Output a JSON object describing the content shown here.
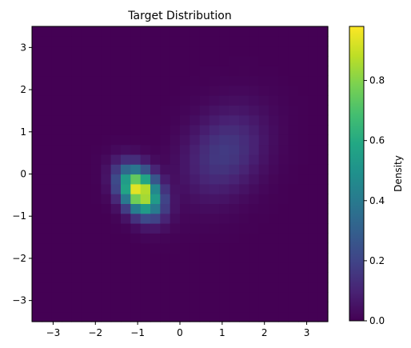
{
  "chart_data": {
    "type": "heatmap",
    "title": "Target Distribution",
    "xlabel": "",
    "ylabel": "",
    "xlim": [
      -3.5,
      3.5
    ],
    "ylim": [
      -3.5,
      3.5
    ],
    "grid_bins": 30,
    "xticks": [
      -3,
      -2,
      -1,
      0,
      1,
      2,
      3
    ],
    "yticks": [
      -3,
      -2,
      -1,
      0,
      1,
      2,
      3
    ],
    "colormap": "viridis",
    "colorbar": {
      "label": "Density",
      "range": [
        0,
        0.98
      ],
      "ticks": [
        0.0,
        0.2,
        0.4,
        0.6,
        0.8
      ],
      "tick_labels": [
        "0.0",
        "0.2",
        "0.4",
        "0.6",
        "0.8"
      ]
    },
    "components": [
      {
        "center": [
          -0.95,
          -0.4
        ],
        "sx": 0.33,
        "sy": 0.38,
        "rho": -0.35,
        "peak": 0.98
      },
      {
        "center": [
          1.05,
          0.5
        ],
        "sx": 0.65,
        "sy": 0.72,
        "rho": 0.25,
        "peak": 0.17
      }
    ]
  }
}
